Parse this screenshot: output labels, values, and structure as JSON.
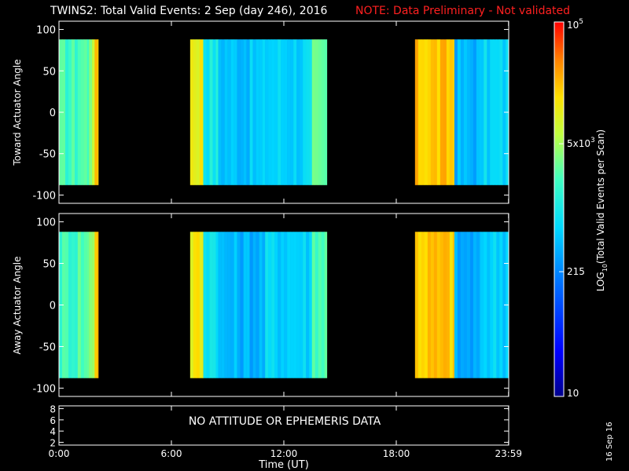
{
  "title": "TWINS2: Total Valid Events:  2 Sep (day 246), 2016",
  "note": "NOTE: Data Preliminary - Not validated",
  "note_color": "#ff2020",
  "date_stamp": "16 Sep 16",
  "no_data_message": "NO ATTITUDE OR EPHEMERIS DATA",
  "chart_data": [
    {
      "type": "heatmap",
      "panel": "toward",
      "ylabel": "Toward Actuator Angle",
      "ylim": [
        -110,
        110
      ],
      "yticks": [
        100,
        50,
        0,
        -50,
        -100
      ],
      "angle_range": [
        -88,
        88
      ],
      "xlim_hours": [
        0,
        24
      ],
      "data_intervals_hours": [
        [
          0.0,
          2.1
        ],
        [
          7.0,
          14.3
        ],
        [
          19.0,
          23.99
        ]
      ],
      "log10_events_profile": [
        {
          "t": [
            0.0,
            1.0
          ],
          "level": 3.3
        },
        {
          "t": [
            1.0,
            1.6
          ],
          "level": 3.4
        },
        {
          "t": [
            1.6,
            1.9
          ],
          "level": 3.7
        },
        {
          "t": [
            1.9,
            2.1
          ],
          "level": 4.4
        },
        {
          "t": [
            7.0,
            7.7
          ],
          "level": 4.1
        },
        {
          "t": [
            7.7,
            8.5
          ],
          "level": 3.0
        },
        {
          "t": [
            8.5,
            11.0
          ],
          "level": 2.7
        },
        {
          "t": [
            11.0,
            13.5
          ],
          "level": 2.8
        },
        {
          "t": [
            13.5,
            14.3
          ],
          "level": 3.4
        },
        {
          "t": [
            19.0,
            21.1
          ],
          "level": 4.3
        },
        {
          "t": [
            21.1,
            22.5
          ],
          "level": 2.6
        },
        {
          "t": [
            22.5,
            23.99
          ],
          "level": 2.8
        }
      ]
    },
    {
      "type": "heatmap",
      "panel": "away",
      "ylabel": "Away Actuator Angle",
      "ylim": [
        -110,
        110
      ],
      "yticks": [
        100,
        50,
        0,
        -50,
        -100
      ],
      "angle_range": [
        -88,
        88
      ],
      "xlim_hours": [
        0,
        24
      ],
      "data_intervals_hours": [
        [
          0.0,
          2.1
        ],
        [
          7.0,
          14.3
        ],
        [
          19.0,
          23.99
        ]
      ],
      "log10_events_profile": [
        {
          "t": [
            0.0,
            1.0
          ],
          "level": 3.3
        },
        {
          "t": [
            1.0,
            1.6
          ],
          "level": 3.4
        },
        {
          "t": [
            1.6,
            1.9
          ],
          "level": 3.7
        },
        {
          "t": [
            1.9,
            2.1
          ],
          "level": 4.4
        },
        {
          "t": [
            7.0,
            7.7
          ],
          "level": 4.1
        },
        {
          "t": [
            7.7,
            8.5
          ],
          "level": 3.0
        },
        {
          "t": [
            8.5,
            11.0
          ],
          "level": 2.6
        },
        {
          "t": [
            11.0,
            13.5
          ],
          "level": 2.8
        },
        {
          "t": [
            13.5,
            14.3
          ],
          "level": 3.4
        },
        {
          "t": [
            19.0,
            21.1
          ],
          "level": 4.3
        },
        {
          "t": [
            21.1,
            22.5
          ],
          "level": 2.5
        },
        {
          "t": [
            22.5,
            23.99
          ],
          "level": 2.8
        }
      ]
    },
    {
      "type": "line",
      "panel": "ephemeris",
      "ylim": [
        1.5,
        8.5
      ],
      "yticks": [
        8,
        6,
        4,
        2
      ],
      "xlabel": "Time (UT)",
      "xtick_labels": [
        "0:00",
        "6:00",
        "12:00",
        "18:00",
        "23:59"
      ],
      "xtick_hours": [
        0,
        6,
        12,
        18,
        23.99
      ]
    }
  ],
  "colorbar": {
    "label": "LOG10(Total Valid Events per Scan)",
    "scale": "log",
    "range": [
      10,
      100000
    ],
    "ticks": [
      {
        "value": 100000,
        "label": "10^5"
      },
      {
        "value": 5000,
        "label": "5x10^3"
      },
      {
        "value": 215,
        "label": "215"
      },
      {
        "value": 10,
        "label": "10"
      }
    ]
  }
}
